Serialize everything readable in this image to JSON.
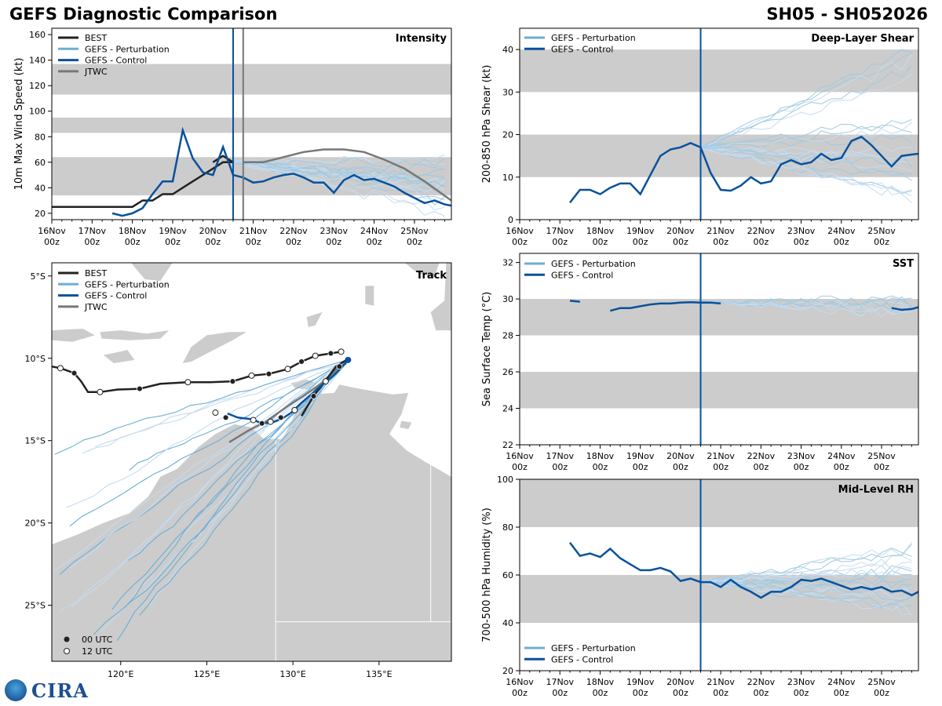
{
  "header": {
    "title": "GEFS Diagnostic Comparison",
    "storm": "SH05 - SH052026"
  },
  "colors": {
    "best": "#222222",
    "perturbation": "#6baed6",
    "control": "#08519c",
    "jtwc": "#777777",
    "band": "#cccccc",
    "land": "#cccccc"
  },
  "time_axis": {
    "labels_top": [
      "16Nov",
      "17Nov",
      "18Nov",
      "19Nov",
      "20Nov",
      "21Nov",
      "22Nov",
      "23Nov",
      "24Nov",
      "25Nov"
    ],
    "labels_bottom": "00z",
    "range_hours": [
      0,
      238
    ],
    "init_hour": 108
  },
  "legend_labels": {
    "best": "BEST",
    "perturbation": "GEFS - Perturbation",
    "control": "GEFS - Control",
    "jtwc": "JTWC",
    "utc00": "00 UTC",
    "utc12": "12 UTC"
  },
  "logo": {
    "text": "CIRA"
  },
  "chart_data": [
    {
      "id": "intensity",
      "type": "line",
      "title": "Intensity",
      "ylabel": "10m Max Wind Speed (kt)",
      "ylim": [
        15,
        165
      ],
      "yticks": [
        20,
        40,
        60,
        80,
        100,
        120,
        140,
        160
      ],
      "bands": [
        [
          34,
          64
        ],
        [
          83,
          95
        ],
        [
          113,
          137
        ]
      ],
      "jtwc_time": 114,
      "series": [
        {
          "name": "BEST",
          "role": "best",
          "x": [
            0,
            6,
            12,
            18,
            24,
            30,
            36,
            42,
            48,
            54,
            60,
            66,
            72,
            78,
            84,
            90,
            96,
            102,
            108
          ],
          "y": [
            25,
            25,
            25,
            25,
            25,
            25,
            25,
            25,
            25,
            30,
            30,
            35,
            35,
            40,
            45,
            50,
            55,
            60,
            60
          ]
        },
        {
          "name": "BEST-2",
          "role": "best",
          "x": [
            96,
            102,
            108
          ],
          "y": [
            60,
            65,
            60
          ]
        },
        {
          "name": "GEFS - Control",
          "role": "control",
          "x": [
            36,
            42,
            48,
            54,
            60,
            66,
            72,
            78,
            84,
            90,
            96,
            102,
            108,
            114,
            120,
            126,
            132,
            138,
            144,
            150,
            156,
            162,
            168,
            174,
            180,
            186,
            192,
            198,
            204,
            210,
            216,
            222,
            228,
            234,
            238
          ],
          "y": [
            20,
            18,
            20,
            24,
            35,
            45,
            45,
            85,
            63,
            52,
            50,
            72,
            50,
            48,
            44,
            45,
            48,
            50,
            51,
            48,
            44,
            44,
            36,
            46,
            50,
            46,
            47,
            44,
            41,
            36,
            32,
            28,
            30,
            27,
            26
          ]
        },
        {
          "name": "JTWC",
          "role": "jtwc",
          "x": [
            114,
            126,
            138,
            150,
            162,
            174,
            186,
            198,
            210,
            222,
            238
          ],
          "y": [
            60,
            60,
            64,
            68,
            70,
            70,
            68,
            62,
            55,
            45,
            30
          ]
        }
      ],
      "perturbation_spread": {
        "start": 108,
        "start_value": 60,
        "end_range": [
          18,
          68
        ],
        "count": 20
      }
    },
    {
      "id": "shear",
      "type": "line",
      "title": "Deep-Layer Shear",
      "ylabel": "200-850 hPa Shear (kt)",
      "ylim": [
        0,
        45
      ],
      "yticks": [
        0,
        10,
        20,
        30,
        40
      ],
      "bands": [
        [
          10,
          20
        ],
        [
          30,
          40
        ]
      ],
      "series": [
        {
          "name": "GEFS - Control",
          "role": "control",
          "x": [
            30,
            36,
            42,
            48,
            54,
            60,
            66,
            72,
            78,
            84,
            90,
            96,
            102,
            108,
            114,
            120,
            126,
            132,
            138,
            144,
            150,
            156,
            162,
            168,
            174,
            180,
            186,
            192,
            198,
            204,
            210,
            216,
            222,
            228,
            234,
            238
          ],
          "y": [
            4,
            7,
            7,
            6,
            7.5,
            8.5,
            8.5,
            6,
            10.5,
            15,
            16.5,
            17,
            18,
            17,
            11,
            7,
            6.8,
            8,
            10,
            8.5,
            9,
            13,
            14,
            13,
            13.5,
            15.5,
            14,
            14.5,
            18.5,
            19.5,
            17.5,
            15,
            12.5,
            15,
            15.3,
            15.5
          ]
        }
      ],
      "perturbation_spread": {
        "start": 108,
        "start_value": 17,
        "end_range": [
          5,
          42
        ],
        "count": 20
      }
    },
    {
      "id": "sst",
      "type": "line",
      "title": "SST",
      "ylabel": "Sea Surface Temp (°C)",
      "ylim": [
        22,
        32.5
      ],
      "yticks": [
        22,
        24,
        26,
        28,
        30,
        32
      ],
      "bands": [
        [
          24,
          26
        ],
        [
          28,
          30
        ]
      ],
      "series": [
        {
          "name": "GEFS - Control-a",
          "role": "control",
          "x": [
            30,
            36
          ],
          "y": [
            29.9,
            29.85
          ]
        },
        {
          "name": "GEFS - Control-b",
          "role": "control",
          "x": [
            54,
            60,
            66,
            72,
            78,
            84,
            90,
            96,
            102,
            108,
            114,
            120
          ],
          "y": [
            29.35,
            29.5,
            29.5,
            29.6,
            29.7,
            29.75,
            29.75,
            29.8,
            29.82,
            29.8,
            29.8,
            29.75
          ]
        },
        {
          "name": "GEFS - Control-c",
          "role": "control",
          "x": [
            222,
            228,
            234,
            238
          ],
          "y": [
            29.5,
            29.4,
            29.45,
            29.55
          ]
        }
      ],
      "perturbation_spread": {
        "start": 108,
        "start_value": 29.8,
        "end_range": [
          29.0,
          30.1
        ],
        "count": 8
      }
    },
    {
      "id": "rh",
      "type": "line",
      "title": "Mid-Level RH",
      "ylabel": "700-500 hPa Humidity (%)",
      "ylim": [
        20,
        100
      ],
      "yticks": [
        20,
        40,
        60,
        80,
        100
      ],
      "bands": [
        [
          40,
          60
        ],
        [
          80,
          100
        ]
      ],
      "series": [
        {
          "name": "GEFS - Control",
          "role": "control",
          "x": [
            30,
            36,
            42,
            48,
            54,
            60,
            66,
            72,
            78,
            84,
            90,
            96,
            102,
            108,
            114,
            120,
            126,
            132,
            138,
            144,
            150,
            156,
            162,
            168,
            174,
            180,
            186,
            192,
            198,
            204,
            210,
            216,
            222,
            228,
            234,
            238
          ],
          "y": [
            73.5,
            68,
            69,
            67.5,
            71,
            67,
            64.5,
            62,
            62,
            63,
            61.5,
            57.5,
            58.5,
            57,
            57,
            55,
            58,
            55,
            53,
            50.5,
            53,
            53,
            55,
            58,
            57.5,
            58.5,
            57,
            55.5,
            54,
            55,
            54,
            55,
            53,
            53.5,
            51.5,
            53
          ]
        }
      ],
      "perturbation_spread": {
        "start": 108,
        "start_value": 57,
        "end_range": [
          42,
          72
        ],
        "count": 20
      }
    },
    {
      "id": "track",
      "type": "map",
      "title": "Track",
      "lon_range": [
        116,
        139.2
      ],
      "lat_range": [
        -28.4,
        -4.2
      ],
      "lon_ticks": [
        120,
        125,
        130,
        135
      ],
      "lon_labels": [
        "120°E",
        "125°E",
        "130°E",
        "135°E"
      ],
      "lat_ticks": [
        -5,
        -10,
        -15,
        -20,
        -25
      ],
      "lat_labels": [
        "5°S",
        "10°S",
        "15°S",
        "20°S",
        "25°S"
      ],
      "best_track": [
        [
          116,
          -10.5
        ],
        [
          116.5,
          -10.6
        ],
        [
          117.3,
          -10.9
        ],
        [
          117.7,
          -11.4
        ],
        [
          118.1,
          -12.05
        ],
        [
          118.8,
          -12.05
        ],
        [
          119.8,
          -11.9
        ],
        [
          121.1,
          -11.85
        ],
        [
          122.3,
          -11.55
        ],
        [
          123.9,
          -11.45
        ],
        [
          125.2,
          -11.45
        ],
        [
          126.5,
          -11.4
        ],
        [
          127.6,
          -11.05
        ],
        [
          128.6,
          -10.95
        ],
        [
          129.7,
          -10.65
        ],
        [
          130.5,
          -10.2
        ],
        [
          131.3,
          -9.85
        ],
        [
          132.2,
          -9.7
        ],
        [
          132.8,
          -9.6
        ]
      ],
      "best_track_2": [
        [
          130.5,
          -13.5
        ],
        [
          131.2,
          -12.3
        ],
        [
          131.8,
          -11.5
        ],
        [
          132.5,
          -10.5
        ],
        [
          133.1,
          -10.1
        ]
      ],
      "control_track": [
        [
          126.2,
          -13.35
        ],
        [
          126.8,
          -13.6
        ],
        [
          127.6,
          -13.7
        ],
        [
          128.2,
          -13.95
        ],
        [
          128.8,
          -13.9
        ],
        [
          129.4,
          -13.65
        ],
        [
          129.9,
          -13.3
        ],
        [
          130.5,
          -12.7
        ],
        [
          131.1,
          -12.15
        ],
        [
          131.7,
          -11.6
        ],
        [
          132.3,
          -11.1
        ],
        [
          132.8,
          -10.6
        ],
        [
          133.2,
          -10.1
        ]
      ],
      "jtwc_track": [
        [
          126.3,
          -15.1
        ],
        [
          127.4,
          -14.4
        ],
        [
          128.5,
          -13.8
        ],
        [
          129.7,
          -12.9
        ],
        [
          130.6,
          -12.3
        ],
        [
          131.7,
          -11.5
        ],
        [
          132.6,
          -10.6
        ],
        [
          133.1,
          -10.3
        ]
      ],
      "markers_00": [
        [
          117.3,
          -10.9
        ],
        [
          121.1,
          -11.85
        ],
        [
          126.5,
          -11.4
        ],
        [
          128.6,
          -10.95
        ],
        [
          130.5,
          -10.2
        ],
        [
          132.2,
          -9.7
        ],
        [
          126.1,
          -13.6
        ],
        [
          128.2,
          -13.95
        ],
        [
          129.3,
          -13.6
        ],
        [
          131.2,
          -12.3
        ],
        [
          132.7,
          -10.5
        ]
      ],
      "markers_12": [
        [
          116.5,
          -10.6
        ],
        [
          118.8,
          -12.05
        ],
        [
          123.9,
          -11.45
        ],
        [
          127.6,
          -11.05
        ],
        [
          129.7,
          -10.65
        ],
        [
          131.3,
          -9.85
        ],
        [
          132.8,
          -9.6
        ],
        [
          125.5,
          -13.3
        ],
        [
          127.7,
          -13.75
        ],
        [
          128.7,
          -13.85
        ],
        [
          130.1,
          -13.15
        ],
        [
          131.9,
          -11.4
        ]
      ],
      "perturbation_origin": [
        133.2,
        -10.1
      ],
      "perturbation_count": 20
    }
  ]
}
